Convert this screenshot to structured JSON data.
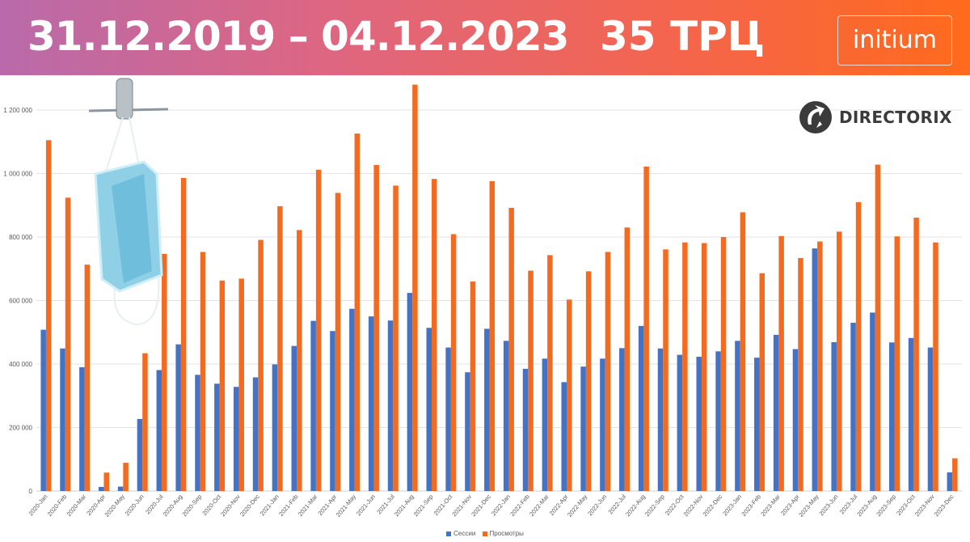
{
  "header": {
    "title": "31.12.2019 – 04.12.2023",
    "subtitle": "35 ТРЦ",
    "brand": "initium"
  },
  "watermark": {
    "text": "DIRECTORIX",
    "icon": "directorix-logo-icon"
  },
  "decoration": {
    "icon": "face-mask-icon"
  },
  "colors": {
    "sessions": "#4472c4",
    "views": "#f26b21",
    "grid": "#e3e3e3",
    "header_start": "#b96aaa",
    "header_end": "#ff6a1c"
  },
  "chart_data": {
    "type": "bar",
    "title": "",
    "xlabel": "",
    "ylabel": "",
    "ylim": [
      0,
      1200000
    ],
    "yticks": [
      0,
      200000,
      400000,
      600000,
      800000,
      1000000,
      1200000
    ],
    "ytick_labels": [
      "0",
      "200 000",
      "400 000",
      "600 000",
      "800 000",
      "1 000 000",
      "1 200 000"
    ],
    "grid": true,
    "legend_position": "bottom",
    "categories": [
      "2020-Jan",
      "2020-Feb",
      "2020-Mar",
      "2020-Apr",
      "2020-May",
      "2020-Jun",
      "2020-Jul",
      "2020-Aug",
      "2020-Sep",
      "2020-Oct",
      "2020-Nov",
      "2020-Dec",
      "2021-Jan",
      "2021-Feb",
      "2021-Mar",
      "2021-Apr",
      "2021-May",
      "2021-Jun",
      "2021-Jul",
      "2021-Aug",
      "2021-Sep",
      "2021-Oct",
      "2021-Nov",
      "2021-Dec",
      "2022-Jan",
      "2022-Feb",
      "2022-Mar",
      "2022-Apr",
      "2022-May",
      "2022-Jun",
      "2022-Jul",
      "2022-Aug",
      "2022-Sep",
      "2022-Oct",
      "2022-Nov",
      "2022-Dec",
      "2023-Jan",
      "2023-Feb",
      "2023-Mar",
      "2023-Apr",
      "2023-May",
      "2023-Jun",
      "2023-Jul",
      "2023-Aug",
      "2023-Sep",
      "2023-Oct",
      "2023-Nov",
      "2023-Dec"
    ],
    "series": [
      {
        "name": "Сессии",
        "color": "#4472c4",
        "values": [
          508000,
          449000,
          390000,
          13000,
          14000,
          227000,
          381000,
          462000,
          366000,
          338000,
          328000,
          358000,
          399000,
          457000,
          536000,
          504000,
          574000,
          550000,
          537000,
          624000,
          514000,
          452000,
          374000,
          511000,
          473000,
          385000,
          417000,
          343000,
          392000,
          417000,
          450000,
          520000,
          449000,
          429000,
          423000,
          440000,
          473000,
          420000,
          492000,
          447000,
          764000,
          469000,
          530000,
          562000,
          468000,
          482000,
          452000,
          59000
        ]
      },
      {
        "name": "Просмотры",
        "color": "#f26b21",
        "values": [
          1105000,
          924000,
          713000,
          58000,
          89000,
          434000,
          747000,
          986000,
          753000,
          663000,
          669000,
          791000,
          897000,
          822000,
          1012000,
          939000,
          1126000,
          1027000,
          962000,
          1280000,
          983000,
          809000,
          660000,
          976000,
          892000,
          694000,
          743000,
          603000,
          692000,
          753000,
          830000,
          1022000,
          761000,
          783000,
          781000,
          800000,
          878000,
          686000,
          803000,
          734000,
          786000,
          817000,
          910000,
          1028000,
          802000,
          861000,
          783000,
          103000
        ]
      }
    ]
  }
}
